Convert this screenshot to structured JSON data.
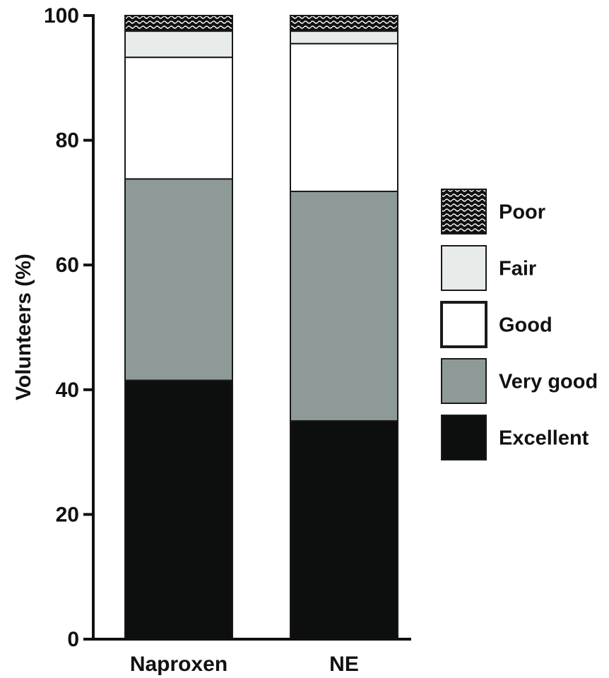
{
  "chart_data": {
    "type": "bar",
    "stacked": true,
    "categories": [
      "Naproxen",
      "NE"
    ],
    "series": [
      {
        "name": "Excellent",
        "values": [
          41.5,
          35.0
        ],
        "color": "#0d0f0e"
      },
      {
        "name": "Very good",
        "values": [
          32.3,
          36.8
        ],
        "color": "#8e9a98"
      },
      {
        "name": "Good",
        "values": [
          19.5,
          23.7
        ],
        "color": "#ffffff"
      },
      {
        "name": "Fair",
        "values": [
          4.2,
          2.0
        ],
        "color": "#e7ebea"
      },
      {
        "name": "Poor",
        "values": [
          2.5,
          2.5
        ],
        "color": "#111111",
        "pattern": "wavy-hatch"
      }
    ],
    "legend_order": [
      "Poor",
      "Fair",
      "Good",
      "Very good",
      "Excellent"
    ],
    "ylabel": "Volunteers (%)",
    "ylim": [
      0,
      100
    ],
    "yticks": [
      0,
      20,
      40,
      60,
      80,
      100
    ],
    "grid": false,
    "legend_position": "right"
  }
}
